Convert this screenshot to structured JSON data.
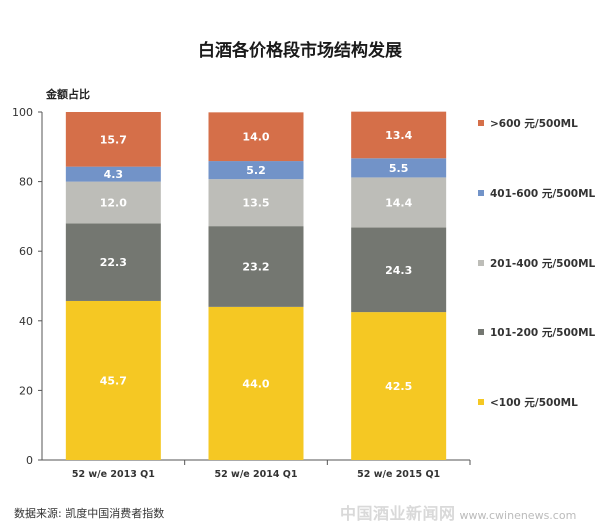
{
  "chart_data": {
    "type": "bar",
    "stacked": true,
    "title": "白酒各价格段市场结构发展",
    "ylabel": "金额占比",
    "ylim": [
      0,
      100
    ],
    "yticks": [
      "0",
      "20",
      "40",
      "60",
      "80",
      "100"
    ],
    "grid": false,
    "legend_position": "right",
    "categories": [
      "52 w/e 2013 Q1",
      "52 w/e 2014 Q1",
      "52 w/e 2015 Q1"
    ],
    "series": [
      {
        "name": "<100 元/500ML",
        "color": "#f5c823",
        "label_color": "#ffffff",
        "values": [
          45.7,
          44.0,
          42.5
        ],
        "labels": [
          "45.7",
          "44.0",
          "42.5"
        ]
      },
      {
        "name": "101-200 元/500ML",
        "color": "#747771",
        "label_color": "#ffffff",
        "values": [
          22.3,
          23.2,
          24.3
        ],
        "labels": [
          "22.3",
          "23.2",
          "24.3"
        ]
      },
      {
        "name": "201-400 元/500ML",
        "color": "#bdbdb8",
        "label_color": "#ffffff",
        "values": [
          12.0,
          13.5,
          14.4
        ],
        "labels": [
          "12.0",
          "13.5",
          "14.4"
        ]
      },
      {
        "name": "401-600 元/500ML",
        "color": "#7293c8",
        "label_color": "#ffffff",
        "values": [
          4.3,
          5.2,
          5.5
        ],
        "labels": [
          "4.3",
          "5.2",
          "5.5"
        ]
      },
      {
        "name": ">600 元/500ML",
        "color": "#d56f49",
        "label_color": "#ffffff",
        "values": [
          15.7,
          14.0,
          13.4
        ],
        "labels": [
          "15.7",
          "14.0",
          "13.4"
        ]
      }
    ]
  },
  "source": "数据来源: 凯度中国消费者指数",
  "watermark": {
    "text": "中国酒业新闻网",
    "url": "www.cwinenews.com"
  }
}
